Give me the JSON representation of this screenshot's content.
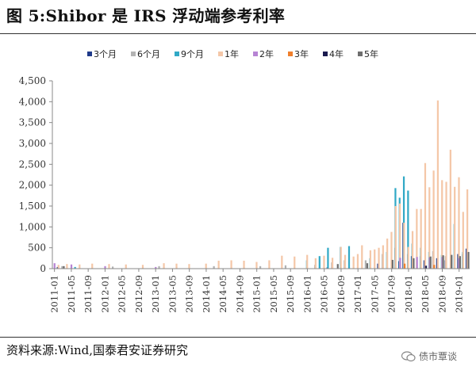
{
  "figure": {
    "title": "图 5:Shibor 是 IRS 浮动端参考利率",
    "source": "资料来源:Wind,国泰君安证券研究",
    "watermark": "债市覃谈"
  },
  "chart_data": {
    "type": "bar",
    "ylim": [
      0,
      4500
    ],
    "yticks": [
      0,
      500,
      1000,
      1500,
      2000,
      2500,
      3000,
      3500,
      4000,
      4500
    ],
    "ytick_labels": [
      "0",
      "500",
      "1,000",
      "1,500",
      "2,000",
      "2,500",
      "3,000",
      "3,500",
      "4,000",
      "4,500"
    ],
    "grid": false,
    "legend_position": "top",
    "x_ticks": [
      "2011-01",
      "2011-05",
      "2011-09",
      "2012-01",
      "2012-05",
      "2012-09",
      "2013-01",
      "2013-05",
      "2013-09",
      "2014-01",
      "2014-05",
      "2014-09",
      "2015-01",
      "2015-05",
      "2015-09",
      "2016-01",
      "2016-05",
      "2016-09",
      "2017-01",
      "2017-05",
      "2017-09",
      "2018-01",
      "2018-05",
      "2018-09",
      "2019-01"
    ],
    "start_month": "2011-01",
    "end_month": "2019-03",
    "series": [
      {
        "name": "3个月",
        "color": "#1f3a8a",
        "points": [
          [
            "2011-02",
            40
          ],
          [
            "2016-06",
            30
          ],
          [
            "2017-06",
            120
          ],
          [
            "2017-11",
            180
          ],
          [
            "2017-12",
            1100
          ],
          [
            "2018-02",
            300
          ],
          [
            "2018-05",
            200
          ],
          [
            "2018-08",
            250
          ],
          [
            "2018-10",
            200
          ],
          [
            "2019-01",
            350
          ],
          [
            "2019-03",
            480
          ]
        ]
      },
      {
        "name": "6个月",
        "color": "#b3b3b3",
        "points": [
          [
            "2011-03",
            60
          ],
          [
            "2012-03",
            50
          ],
          [
            "2013-02",
            60
          ],
          [
            "2014-03",
            60
          ],
          [
            "2015-02",
            60
          ],
          [
            "2015-08",
            80
          ],
          [
            "2016-03",
            90
          ],
          [
            "2016-07",
            150
          ],
          [
            "2016-10",
            200
          ],
          [
            "2017-03",
            200
          ],
          [
            "2017-07",
            350
          ],
          [
            "2017-10",
            500
          ],
          [
            "2018-01",
            350
          ],
          [
            "2018-04",
            300
          ],
          [
            "2018-07",
            420
          ],
          [
            "2018-10",
            300
          ],
          [
            "2019-02",
            350
          ]
        ]
      },
      {
        "name": "9个月",
        "color": "#31a9c6",
        "points": [
          [
            "2011-06",
            40
          ],
          [
            "2016-01",
            200
          ],
          [
            "2016-04",
            300
          ],
          [
            "2016-06",
            500
          ],
          [
            "2016-09",
            520
          ],
          [
            "2016-11",
            540
          ],
          [
            "2017-04",
            250
          ],
          [
            "2017-08",
            400
          ],
          [
            "2017-10",
            1930
          ],
          [
            "2017-11",
            1700
          ],
          [
            "2017-12",
            2210
          ],
          [
            "2018-01",
            1870
          ],
          [
            "2018-02",
            600
          ],
          [
            "2018-04",
            500
          ],
          [
            "2018-06",
            400
          ],
          [
            "2018-09",
            330
          ],
          [
            "2018-12",
            1070
          ],
          [
            "2019-02",
            400
          ]
        ]
      },
      {
        "name": "1年",
        "color": "#f4c7a8",
        "points": [
          [
            "2011-02",
            90
          ],
          [
            "2011-04",
            110
          ],
          [
            "2011-07",
            100
          ],
          [
            "2011-10",
            120
          ],
          [
            "2012-02",
            110
          ],
          [
            "2012-06",
            100
          ],
          [
            "2012-10",
            90
          ],
          [
            "2013-03",
            130
          ],
          [
            "2013-06",
            120
          ],
          [
            "2013-09",
            110
          ],
          [
            "2014-01",
            120
          ],
          [
            "2014-04",
            190
          ],
          [
            "2014-07",
            200
          ],
          [
            "2014-10",
            190
          ],
          [
            "2015-01",
            160
          ],
          [
            "2015-04",
            200
          ],
          [
            "2015-07",
            310
          ],
          [
            "2015-10",
            290
          ],
          [
            "2016-01",
            330
          ],
          [
            "2016-03",
            250
          ],
          [
            "2016-05",
            310
          ],
          [
            "2016-07",
            260
          ],
          [
            "2016-09",
            520
          ],
          [
            "2016-10",
            330
          ],
          [
            "2016-12",
            290
          ],
          [
            "2017-01",
            350
          ],
          [
            "2017-02",
            560
          ],
          [
            "2017-04",
            440
          ],
          [
            "2017-05",
            460
          ],
          [
            "2017-06",
            500
          ],
          [
            "2017-07",
            560
          ],
          [
            "2017-08",
            720
          ],
          [
            "2017-09",
            880
          ],
          [
            "2017-10",
            1500
          ],
          [
            "2017-11",
            1560
          ],
          [
            "2017-12",
            1100
          ],
          [
            "2018-01",
            520
          ],
          [
            "2018-02",
            900
          ],
          [
            "2018-03",
            1430
          ],
          [
            "2018-04",
            1430
          ],
          [
            "2018-05",
            2530
          ],
          [
            "2018-06",
            1950
          ],
          [
            "2018-07",
            2350
          ],
          [
            "2018-08",
            4030
          ],
          [
            "2018-09",
            2120
          ],
          [
            "2018-10",
            2080
          ],
          [
            "2018-11",
            2850
          ],
          [
            "2018-12",
            1960
          ],
          [
            "2019-01",
            2190
          ],
          [
            "2019-02",
            1360
          ],
          [
            "2019-03",
            1900
          ]
        ]
      },
      {
        "name": "2年",
        "color": "#b784d4",
        "points": [
          [
            "2011-01",
            130
          ],
          [
            "2011-05",
            100
          ],
          [
            "2012-01",
            60
          ],
          [
            "2013-01",
            40
          ],
          [
            "2017-11",
            260
          ],
          [
            "2018-03",
            280
          ],
          [
            "2018-06",
            270
          ],
          [
            "2018-09",
            280
          ],
          [
            "2019-01",
            250
          ]
        ]
      },
      {
        "name": "3年",
        "color": "#f07f2c",
        "points": [
          [
            "2017-12",
            120
          ],
          [
            "2018-07",
            90
          ]
        ]
      },
      {
        "name": "4年",
        "color": "#1a1a4e",
        "points": [
          [
            "2018-05",
            70
          ]
        ]
      },
      {
        "name": "5年",
        "color": "#6e6e6e",
        "points": [
          [
            "2011-03",
            60
          ],
          [
            "2016-08",
            110
          ],
          [
            "2017-03",
            130
          ],
          [
            "2017-09",
            210
          ],
          [
            "2018-02",
            250
          ],
          [
            "2018-06",
            290
          ],
          [
            "2018-09",
            320
          ],
          [
            "2018-11",
            330
          ],
          [
            "2019-01",
            300
          ],
          [
            "2019-03",
            400
          ]
        ]
      }
    ]
  }
}
